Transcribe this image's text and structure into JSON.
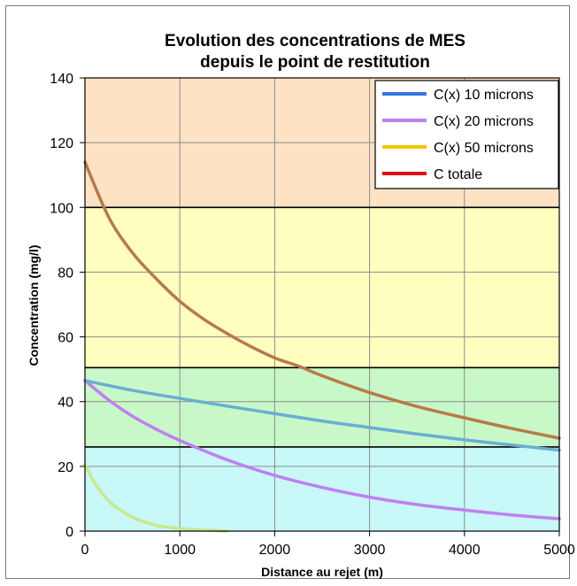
{
  "chart_data": {
    "type": "line",
    "title": "Evolution des concentrations  de MES",
    "subtitle": "depuis le point de restitution",
    "xlabel": "Distance au rejet (m)",
    "ylabel": "Concentration (mg/l)",
    "xlim": [
      0,
      5000
    ],
    "ylim": [
      0,
      140
    ],
    "xticks": [
      "0",
      "1000",
      "2000",
      "3000",
      "4000",
      "5000"
    ],
    "yticks": [
      "0",
      "20",
      "40",
      "60",
      "80",
      "100",
      "120",
      "140"
    ],
    "grid": true,
    "legend_position": "top-right",
    "bands": [
      {
        "from": 0,
        "to": 26,
        "color": "#c8f8f8"
      },
      {
        "from": 26,
        "to": 50.5,
        "color": "#c8f8c8"
      },
      {
        "from": 50.5,
        "to": 100,
        "color": "#ffffc0"
      },
      {
        "from": 100,
        "to": 140,
        "color": "#fde2c4"
      }
    ],
    "series": [
      {
        "name": "C(x) 10 microns",
        "color": "#3a72e0",
        "curve_color": "#6aaed4",
        "x": [
          0,
          500,
          1000,
          1500,
          2000,
          2500,
          3000,
          3500,
          4000,
          4500,
          5000
        ],
        "values": [
          46.5,
          43.5,
          41,
          38.6,
          36.3,
          34,
          32,
          30,
          28.2,
          26.6,
          25
        ]
      },
      {
        "name": "C(x) 20 microns",
        "color": "#c080f0",
        "curve_color": "#c080f0",
        "x": [
          0,
          250,
          500,
          750,
          1000,
          1500,
          2000,
          2500,
          3000,
          3500,
          4000,
          4500,
          5000
        ],
        "values": [
          46.5,
          40.5,
          35.5,
          31.5,
          28,
          22,
          17.2,
          13.5,
          10.5,
          8.2,
          6.5,
          5,
          3.8
        ]
      },
      {
        "name": "C(x) 50 microns",
        "color": "#f5c400",
        "curve_color": "#c8e890",
        "x": [
          0,
          100,
          200,
          300,
          400,
          500,
          600,
          700,
          800,
          1000,
          1200,
          1400,
          1500
        ],
        "values": [
          20.5,
          15,
          11,
          8,
          6,
          4.3,
          3.1,
          2.2,
          1.5,
          0.8,
          0.4,
          0.15,
          0
        ]
      },
      {
        "name": "C totale",
        "color": "#e01010",
        "curve_color": "#b87a4a",
        "x": [
          0,
          250,
          500,
          750,
          1000,
          1250,
          1500,
          1750,
          2000,
          2250,
          2500,
          3000,
          3500,
          4000,
          4500,
          5000
        ],
        "values": [
          114,
          97,
          86,
          78,
          71,
          65.5,
          61,
          57,
          53.5,
          51,
          48,
          42.8,
          38.5,
          35,
          31.7,
          28.7
        ]
      }
    ]
  }
}
